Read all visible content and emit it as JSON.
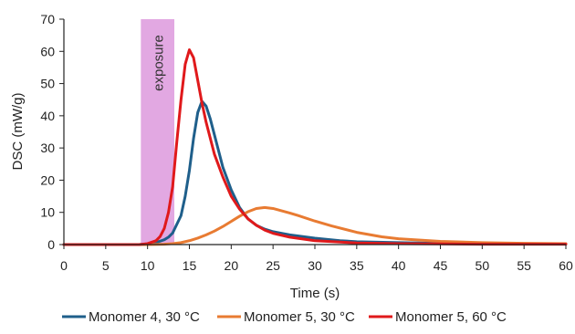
{
  "chart_data": {
    "type": "line",
    "title": "",
    "xlabel": "Time (s)",
    "ylabel": "DSC (mW/g)",
    "xlim": [
      0,
      60
    ],
    "ylim": [
      0,
      70
    ],
    "x_ticks": [
      0,
      5,
      10,
      15,
      20,
      25,
      30,
      35,
      40,
      45,
      50,
      55,
      60
    ],
    "y_ticks": [
      0,
      10,
      20,
      30,
      40,
      50,
      60,
      70
    ],
    "grid": false,
    "legend_position": "bottom",
    "annotations": [
      {
        "label": "exposure",
        "type": "shaded_region",
        "x_range": [
          9.2,
          13.2
        ],
        "color": "#e2a8e2"
      }
    ],
    "series": [
      {
        "name": "Monomer 4, 30 °C",
        "color": "#1f5f8b",
        "x": [
          0,
          9,
          10,
          11,
          12,
          12.5,
          13,
          14,
          14.5,
          15,
          15.5,
          16,
          16.5,
          17,
          17.5,
          18,
          19,
          20,
          21,
          22,
          23,
          24,
          25,
          27,
          30,
          33,
          35,
          40,
          45,
          50,
          55,
          60
        ],
        "y": [
          0,
          0,
          0.2,
          0.6,
          1.5,
          2.3,
          3.6,
          9,
          15,
          23,
          33,
          41,
          44.5,
          43,
          39,
          34,
          24,
          17,
          11.5,
          8,
          6,
          4.8,
          4,
          3,
          2,
          1.2,
          0.9,
          0.6,
          0.4,
          0.3,
          0.2,
          0.2
        ]
      },
      {
        "name": "Monomer 5, 30 °C",
        "color": "#e87b32",
        "x": [
          0,
          10,
          12,
          13,
          14,
          15,
          16,
          17,
          18,
          19,
          20,
          21,
          22,
          23,
          24,
          25,
          26,
          27,
          28,
          30,
          32,
          35,
          38,
          40,
          45,
          50,
          55,
          60
        ],
        "y": [
          0,
          0,
          0.1,
          0.3,
          0.6,
          1.2,
          2,
          3,
          4.2,
          5.6,
          7.2,
          8.8,
          10.2,
          11.2,
          11.5,
          11.2,
          10.5,
          9.8,
          9,
          7.3,
          5.8,
          3.8,
          2.4,
          1.8,
          1,
          0.6,
          0.4,
          0.3
        ]
      },
      {
        "name": "Monomer 5, 60 °C",
        "color": "#e0191b",
        "x": [
          0,
          9,
          10,
          11,
          11.5,
          12,
          12.5,
          13,
          13.5,
          14,
          14.5,
          15,
          15.5,
          16,
          16.5,
          17,
          18,
          19,
          20,
          21,
          22,
          23,
          24,
          25,
          27,
          30,
          35,
          40,
          45,
          50,
          55,
          60
        ],
        "y": [
          0,
          0,
          0.3,
          1.2,
          2.5,
          5,
          10,
          18,
          32,
          45,
          56,
          60.5,
          58,
          51,
          44,
          38,
          28,
          21,
          15,
          11,
          8,
          6,
          4.5,
          3.5,
          2.3,
          1.2,
          0.5,
          0.3,
          0.2,
          0.1,
          0.1,
          0.1
        ]
      }
    ]
  }
}
